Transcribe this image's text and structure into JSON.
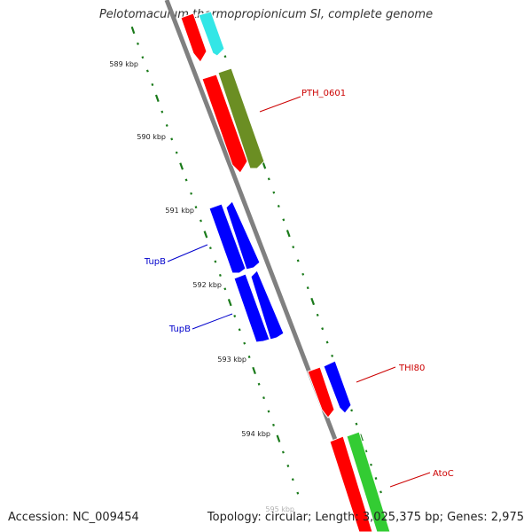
{
  "header": {
    "title": "Pelotomaculum thermopropionicum SI, complete genome"
  },
  "footer": {
    "accession": "Accession: NC_009454",
    "summary": "Topology: circular; Length: 3,025,375 bp; Genes: 2,975"
  },
  "map": {
    "backbone_color": "#808080",
    "tick_color": "#1a7a1a",
    "scale_labels": [
      "589 kbp",
      "590 kbp",
      "591 kbp",
      "592 kbp",
      "593 kbp",
      "594 kbp",
      "595 kbp"
    ],
    "gene_labels": [
      {
        "text": "PTH_0601",
        "color": "#cc0000"
      },
      {
        "text": "TupB",
        "color": "#0000cc"
      },
      {
        "text": "TupB",
        "color": "#0000cc"
      },
      {
        "text": "THI80",
        "color": "#cc0000"
      },
      {
        "text": "AtoC",
        "color": "#cc0000"
      }
    ],
    "feature_colors": {
      "red": "#ff0000",
      "cyan": "#33e6e6",
      "olive": "#6b8e23",
      "blue": "#0000ff",
      "green": "#33cc33"
    }
  }
}
